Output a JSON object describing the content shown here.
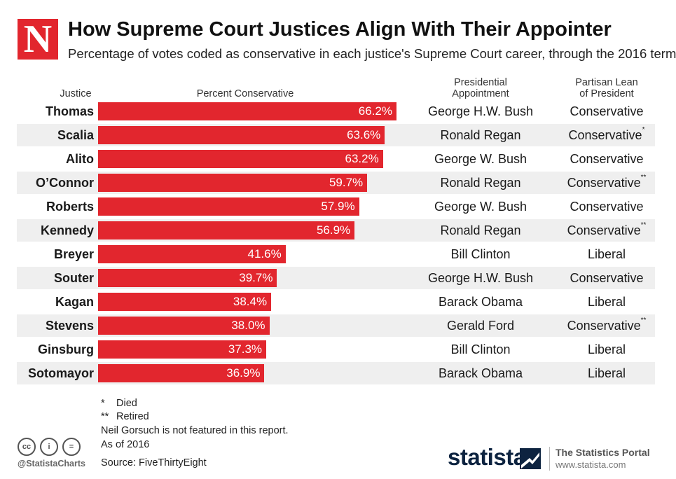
{
  "brand": {
    "logo_letter": "N"
  },
  "title": "How Supreme Court Justices Align With Their Appointer",
  "subtitle": "Percentage of votes coded as conservative in each justice's Supreme Court career, through the 2016 term",
  "headers": {
    "justice": "Justice",
    "percent": "Percent Conservative",
    "appointment_1": "Presidential",
    "appointment_2": "Appointment",
    "lean_1": "Partisan Lean",
    "lean_2": "of President"
  },
  "chart_data": {
    "type": "bar",
    "orientation": "horizontal",
    "xlabel": "Percent Conservative",
    "ylabel": "Justice",
    "xlim": [
      0,
      80
    ],
    "bar_color": "#e2262e",
    "categories": [
      "Thomas",
      "Scalia",
      "Alito",
      "O’Connor",
      "Roberts",
      "Kennedy",
      "Breyer",
      "Souter",
      "Kagan",
      "Stevens",
      "Ginsburg",
      "Sotomayor"
    ],
    "values": [
      66.2,
      63.6,
      63.2,
      59.7,
      57.9,
      56.9,
      41.6,
      39.7,
      38.4,
      38.0,
      37.3,
      36.9
    ],
    "labels": [
      "66.2%",
      "63.6%",
      "63.2%",
      "59.7%",
      "57.9%",
      "56.9%",
      "41.6%",
      "39.7%",
      "38.4%",
      "38.0%",
      "37.3%",
      "36.9%"
    ]
  },
  "rows": [
    {
      "appointment": "George H.W. Bush",
      "lean": "Conservative",
      "mark": ""
    },
    {
      "appointment": "Ronald Regan",
      "lean": "Conservative",
      "mark": "*"
    },
    {
      "appointment": "George W. Bush",
      "lean": "Conservative",
      "mark": ""
    },
    {
      "appointment": "Ronald Regan",
      "lean": "Conservative",
      "mark": "**"
    },
    {
      "appointment": "George W. Bush",
      "lean": "Conservative",
      "mark": ""
    },
    {
      "appointment": "Ronald Regan",
      "lean": "Conservative",
      "mark": "**"
    },
    {
      "appointment": "Bill Clinton",
      "lean": "Liberal",
      "mark": ""
    },
    {
      "appointment": "George H.W. Bush",
      "lean": "Conservative",
      "mark": ""
    },
    {
      "appointment": "Barack Obama",
      "lean": "Liberal",
      "mark": ""
    },
    {
      "appointment": "Gerald Ford",
      "lean": "Conservative",
      "mark": "**"
    },
    {
      "appointment": "Bill Clinton",
      "lean": "Liberal",
      "mark": ""
    },
    {
      "appointment": "Barack Obama",
      "lean": "Liberal",
      "mark": ""
    }
  ],
  "notes": {
    "died_mark": "*",
    "died": "Died",
    "retired_mark": "**",
    "retired": "Retired",
    "gorsuch": "Neil Gorsuch is not featured in this report.",
    "as_of": "As of 2016",
    "source": "Source: FiveThirtyEight"
  },
  "footer": {
    "cc_icons": [
      "cc",
      "i",
      "="
    ],
    "handle": "@StatistaCharts",
    "statista": "statista",
    "portal": "The Statistics Portal",
    "url": "www.statista.com"
  }
}
